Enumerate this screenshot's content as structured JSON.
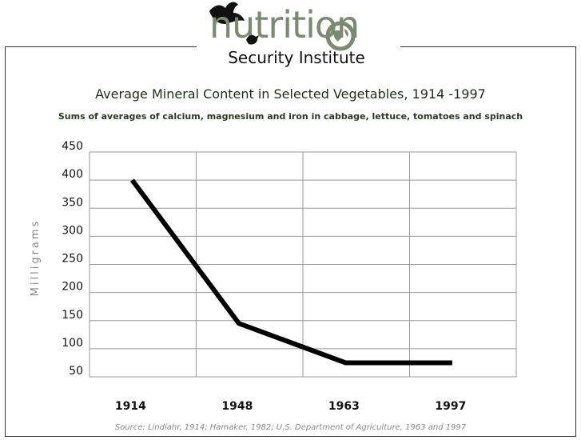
{
  "logo": {
    "name": "nutrition",
    "subtitle": "Security Institute",
    "colors": {
      "word": "#7a8a6e",
      "bird": "#111111"
    }
  },
  "chart_data": {
    "type": "line",
    "title": "Average Mineral Content in Selected Vegetables, 1914 -1997",
    "subtitle": "Sums of averages of calcium, magnesium and iron in cabbage, lettuce, tomatoes and spinach",
    "ylabel": "Milligrams",
    "xlabel": "",
    "categories": [
      "1914",
      "1948",
      "1963",
      "1997"
    ],
    "series": [
      {
        "values": [
          400,
          145,
          75,
          75
        ]
      }
    ],
    "ylim": [
      50,
      450
    ],
    "yticks": [
      50,
      100,
      150,
      200,
      250,
      300,
      350,
      400,
      450
    ],
    "grid": true,
    "line_color": "#000000",
    "source": "Source: Lindlahr, 1914; Hamaker, 1982; U.S. Department of Agriculture, 1963 and 1997"
  }
}
